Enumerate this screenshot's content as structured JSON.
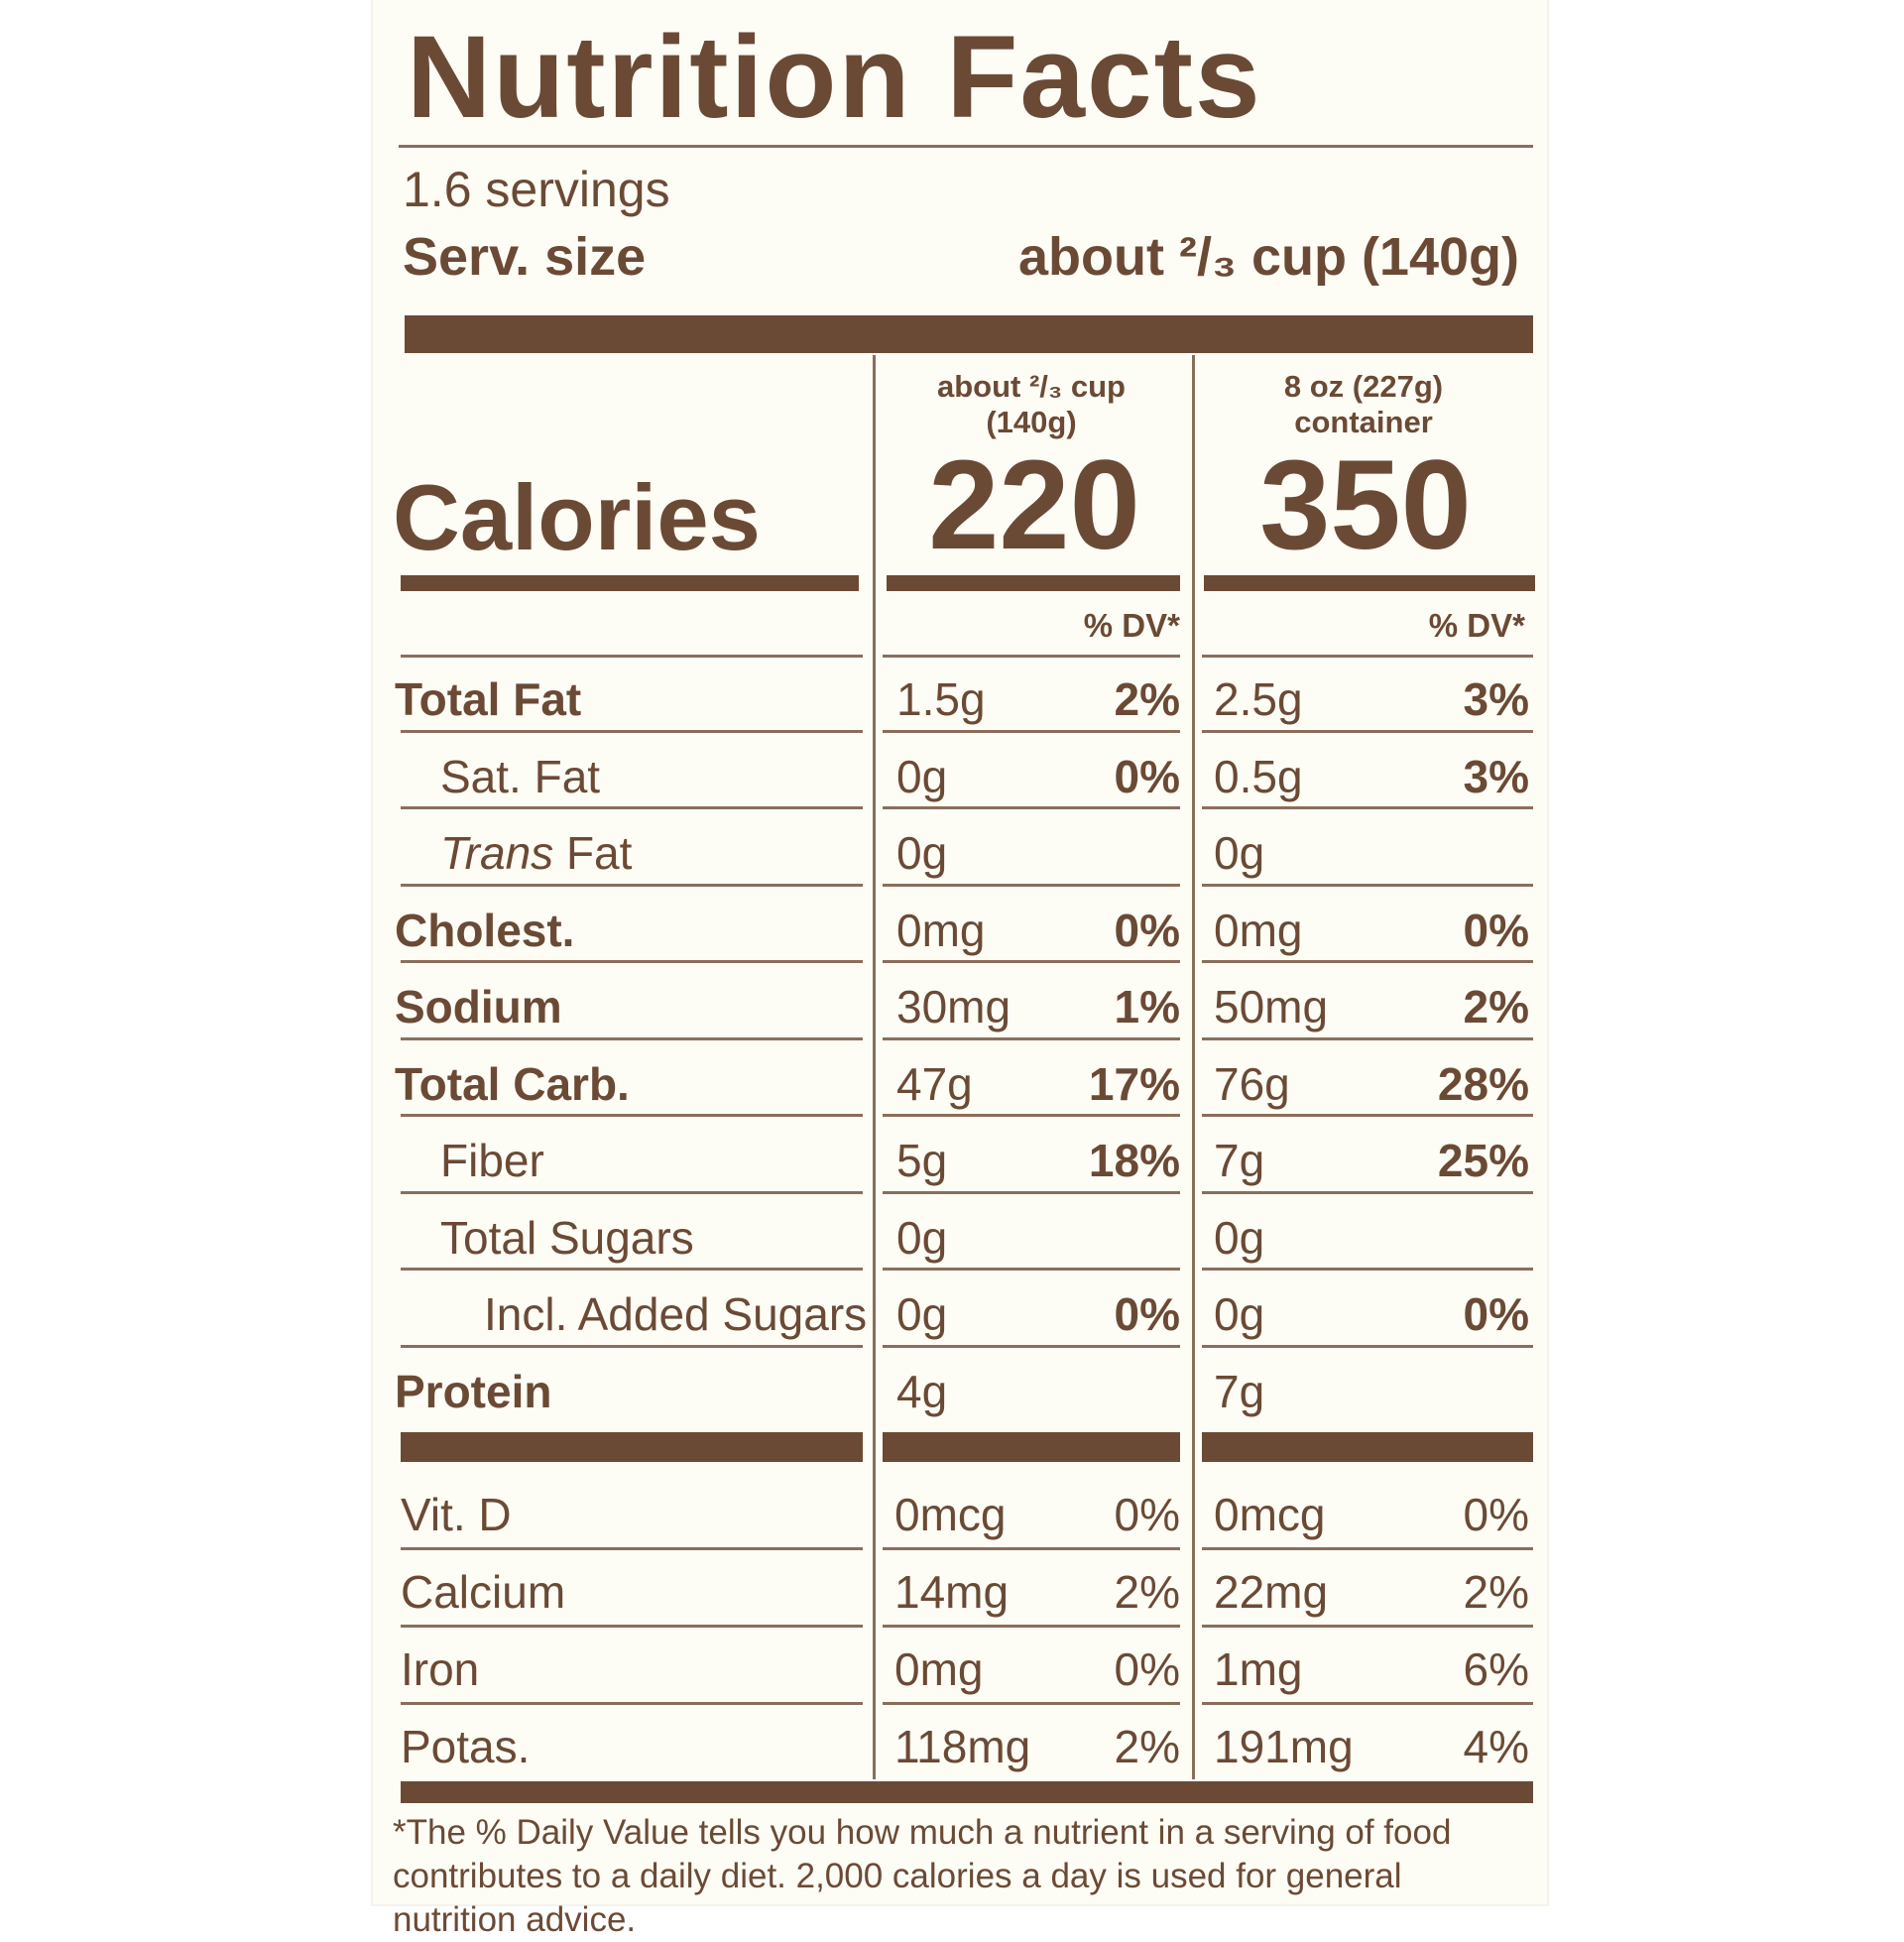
{
  "title": "Nutrition Facts",
  "servings": "1.6 servings",
  "serving_size_label": "Serv. size",
  "serving_size_value": "about ²/₃ cup (140g)",
  "columns": [
    {
      "header_line1": "about ²/₃ cup",
      "header_line2": "(140g)",
      "calories": "220",
      "dv_header": "% DV*"
    },
    {
      "header_line1": "8 oz (227g)",
      "header_line2": "container",
      "calories": "350",
      "dv_header": "% DV*"
    }
  ],
  "calories_label": "Calories",
  "nutrients": [
    {
      "name": "Total Fat",
      "bold": true,
      "indent": 0,
      "col1": {
        "amount": "1.5g",
        "dv": "2%"
      },
      "col2": {
        "amount": "2.5g",
        "dv": "3%"
      }
    },
    {
      "name": "Sat. Fat",
      "bold": false,
      "indent": 1,
      "col1": {
        "amount": "0g",
        "dv": "0%"
      },
      "col2": {
        "amount": "0.5g",
        "dv": "3%"
      }
    },
    {
      "name_italic": "Trans",
      "name": " Fat",
      "bold": false,
      "indent": 1,
      "col1": {
        "amount": "0g",
        "dv": ""
      },
      "col2": {
        "amount": "0g",
        "dv": ""
      }
    },
    {
      "name": "Cholest.",
      "bold": true,
      "indent": 0,
      "col1": {
        "amount": "0mg",
        "dv": "0%"
      },
      "col2": {
        "amount": "0mg",
        "dv": "0%"
      }
    },
    {
      "name": "Sodium",
      "bold": true,
      "indent": 0,
      "col1": {
        "amount": "30mg",
        "dv": "1%"
      },
      "col2": {
        "amount": "50mg",
        "dv": "2%"
      }
    },
    {
      "name": "Total Carb.",
      "bold": true,
      "indent": 0,
      "col1": {
        "amount": "47g",
        "dv": "17%"
      },
      "col2": {
        "amount": "76g",
        "dv": "28%"
      }
    },
    {
      "name": "Fiber",
      "bold": false,
      "indent": 1,
      "col1": {
        "amount": "5g",
        "dv": "18%"
      },
      "col2": {
        "amount": "7g",
        "dv": "25%"
      }
    },
    {
      "name": "Total Sugars",
      "bold": false,
      "indent": 1,
      "col1": {
        "amount": "0g",
        "dv": ""
      },
      "col2": {
        "amount": "0g",
        "dv": ""
      }
    },
    {
      "name": "Incl. Added Sugars",
      "bold": false,
      "indent": 2,
      "col1": {
        "amount": "0g",
        "dv": "0%"
      },
      "col2": {
        "amount": "0g",
        "dv": "0%"
      }
    },
    {
      "name": "Protein",
      "bold": true,
      "indent": 0,
      "col1": {
        "amount": "4g",
        "dv": ""
      },
      "col2": {
        "amount": "7g",
        "dv": ""
      }
    }
  ],
  "vitamins": [
    {
      "name": "Vit. D",
      "col1": {
        "amount": "0mcg",
        "dv": "0%"
      },
      "col2": {
        "amount": "0mcg",
        "dv": "0%"
      }
    },
    {
      "name": "Calcium",
      "col1": {
        "amount": "14mg",
        "dv": "2%"
      },
      "col2": {
        "amount": "22mg",
        "dv": "2%"
      }
    },
    {
      "name": "Iron",
      "col1": {
        "amount": "0mg",
        "dv": "0%"
      },
      "col2": {
        "amount": "1mg",
        "dv": "6%"
      }
    },
    {
      "name": "Potas.",
      "col1": {
        "amount": "118mg",
        "dv": "2%"
      },
      "col2": {
        "amount": "191mg",
        "dv": "4%"
      }
    }
  ],
  "footnote": "*The % Daily Value tells you how much a nutrient in a serving of food contributes to a daily diet. 2,000 calories a day is used for general nutrition advice.",
  "colors": {
    "ink": "#6b4a35",
    "paper": "#fdfdf6"
  }
}
